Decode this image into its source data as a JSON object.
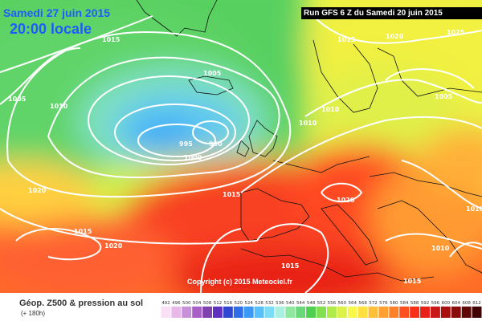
{
  "header": {
    "date": "Samedi 27 juin 2015",
    "time": "20:00 locale",
    "run": "Run GFS 6 Z du Samedi 20 juin 2015"
  },
  "copyright": "Copyright (c) 2015 Meteociel.fr",
  "footer": {
    "title": "Géop. Z500 & pression au sol",
    "subtitle": "(+ 180h)"
  },
  "isobar_labels": [
    "1015",
    "1015",
    "1020",
    "1025",
    "1005",
    "1010",
    "1005",
    "1010",
    "995",
    "990",
    "1000",
    "1010",
    "1020",
    "1015",
    "1005",
    "1020",
    "1015",
    "1020",
    "1015",
    "1010",
    "1010",
    "1015"
  ],
  "legend": {
    "values": [
      "492",
      "496",
      "500",
      "504",
      "508",
      "512",
      "516",
      "520",
      "524",
      "528",
      "532",
      "536",
      "540",
      "544",
      "548",
      "552",
      "556",
      "560",
      "564",
      "568",
      "572",
      "576",
      "580",
      "584",
      "588",
      "592",
      "596",
      "600",
      "604",
      "608",
      "612"
    ],
    "colors": [
      "#fbe0f5",
      "#e8b8e8",
      "#c890d8",
      "#a860c8",
      "#8040b0",
      "#6030c0",
      "#3048d0",
      "#2f6ee8",
      "#3b98f4",
      "#56c0fa",
      "#7cdcf8",
      "#a8f0e0",
      "#90e8a0",
      "#68d878",
      "#50d050",
      "#80e050",
      "#b0ec48",
      "#dcf248",
      "#f8f848",
      "#ffe040",
      "#ffc038",
      "#ffa030",
      "#ff8028",
      "#ff5020",
      "#f83018",
      "#e82018",
      "#c81818",
      "#a81010",
      "#880c0c",
      "#600808",
      "#400404"
    ]
  }
}
